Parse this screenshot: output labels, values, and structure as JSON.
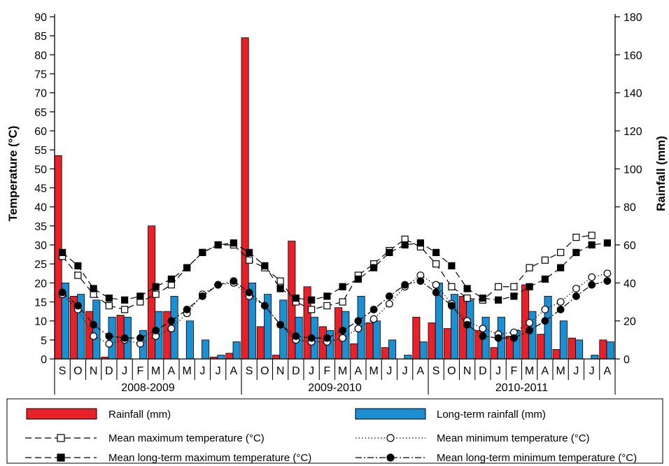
{
  "chart_data": {
    "type": "bar+line",
    "title": "",
    "ylabel": "Temperature (°C)",
    "y2label": "Rainfall (mm)",
    "ylim": [
      0,
      90
    ],
    "y2lim": [
      0,
      180
    ],
    "yticks": [
      "0",
      "5",
      "10",
      "15",
      "20",
      "25",
      "30",
      "35",
      "40",
      "45",
      "50",
      "55",
      "60",
      "65",
      "70",
      "75",
      "80",
      "85",
      "90"
    ],
    "y2ticks": [
      "0",
      "20",
      "40",
      "60",
      "80",
      "100",
      "120",
      "140",
      "160",
      "180"
    ],
    "months": [
      "S",
      "O",
      "N",
      "D",
      "J",
      "F",
      "M",
      "A",
      "M",
      "J",
      "J",
      "A",
      "S",
      "O",
      "N",
      "D",
      "J",
      "F",
      "M",
      "A",
      "M",
      "J",
      "J",
      "A",
      "S",
      "O",
      "N",
      "D",
      "J",
      "F",
      "M",
      "A",
      "M",
      "J",
      "J",
      "A"
    ],
    "seasons": [
      "2008-2009",
      "2009-2010",
      "2010-2011"
    ],
    "colors": {
      "rainfall": "#e8202a",
      "longterm_rainfall": "#1b8fd2"
    },
    "series": [
      {
        "name": "Rainfall (mm)",
        "axis": "right",
        "values": [
          107,
          33,
          25,
          1,
          23,
          0,
          70,
          25,
          0,
          0,
          1,
          3,
          169,
          17,
          2,
          62,
          38,
          17,
          27,
          8,
          19,
          6,
          0,
          22,
          19,
          16,
          33,
          15,
          6,
          12,
          39,
          13,
          5,
          11,
          0,
          10
        ]
      },
      {
        "name": "Long-term rainfall (mm)",
        "axis": "right",
        "values": [
          40,
          34,
          31,
          22,
          22,
          15,
          25,
          33,
          20,
          10,
          2,
          9,
          40,
          34,
          31,
          22,
          22,
          15,
          25,
          33,
          20,
          10,
          2,
          9,
          40,
          34,
          31,
          22,
          22,
          15,
          25,
          33,
          20,
          10,
          2,
          9
        ]
      },
      {
        "name": "Mean maximum temperature (°C)",
        "axis": "left",
        "values": [
          27,
          22,
          17,
          14,
          13,
          15,
          17,
          19.5,
          24,
          28,
          30,
          30,
          26,
          24,
          20.5,
          15,
          13,
          14,
          15,
          22,
          25,
          28.5,
          31.5,
          29.5,
          25,
          19,
          16,
          15.5,
          19,
          19,
          24,
          26,
          28,
          32,
          32.5,
          null
        ]
      },
      {
        "name": "Mean minimum temperature (°C)",
        "axis": "left",
        "values": [
          17,
          13,
          6,
          4,
          5,
          4,
          6,
          8,
          12,
          17,
          19.5,
          20,
          16.5,
          14,
          9,
          5,
          4.5,
          4.5,
          5.5,
          8,
          10.5,
          14.5,
          19,
          22,
          19.5,
          14.5,
          10,
          8,
          6.5,
          7,
          9.5,
          13,
          15,
          18.5,
          21.5,
          22.5
        ]
      },
      {
        "name": "Mean long-term maximum temperature (°C)",
        "axis": "left",
        "values": [
          28,
          24.5,
          18.5,
          16,
          15.5,
          16.5,
          19,
          21,
          24,
          28,
          30,
          30.5,
          28,
          24.5,
          18.5,
          16,
          15.5,
          16.5,
          19,
          21,
          24,
          28,
          30,
          30.5,
          28,
          24.5,
          18.5,
          16,
          15.5,
          16.5,
          19,
          21,
          24,
          28,
          30,
          30.5
        ]
      },
      {
        "name": "Mean long-term minimum temperature (°C)",
        "axis": "left",
        "values": [
          17.5,
          14,
          9,
          6,
          5.5,
          5.5,
          7.5,
          10,
          13,
          16.5,
          19.5,
          20.5,
          17.5,
          14,
          9,
          6,
          5.5,
          5.5,
          7.5,
          10,
          13,
          16.5,
          19.5,
          20.5,
          17.5,
          14,
          9,
          6,
          5.5,
          5.5,
          7.5,
          10,
          13,
          16.5,
          19.5,
          20.5
        ]
      }
    ],
    "legend": {
      "placement": "bottom",
      "items": [
        "Rainfall (mm)",
        "Long-term rainfall (mm)",
        "Mean maximum temperature (°C)",
        "Mean minimum temperature (°C)",
        "Mean long-term maximum temperature (°C)",
        "Mean long-term minimum temperature (°C)"
      ]
    },
    "grid": false
  }
}
